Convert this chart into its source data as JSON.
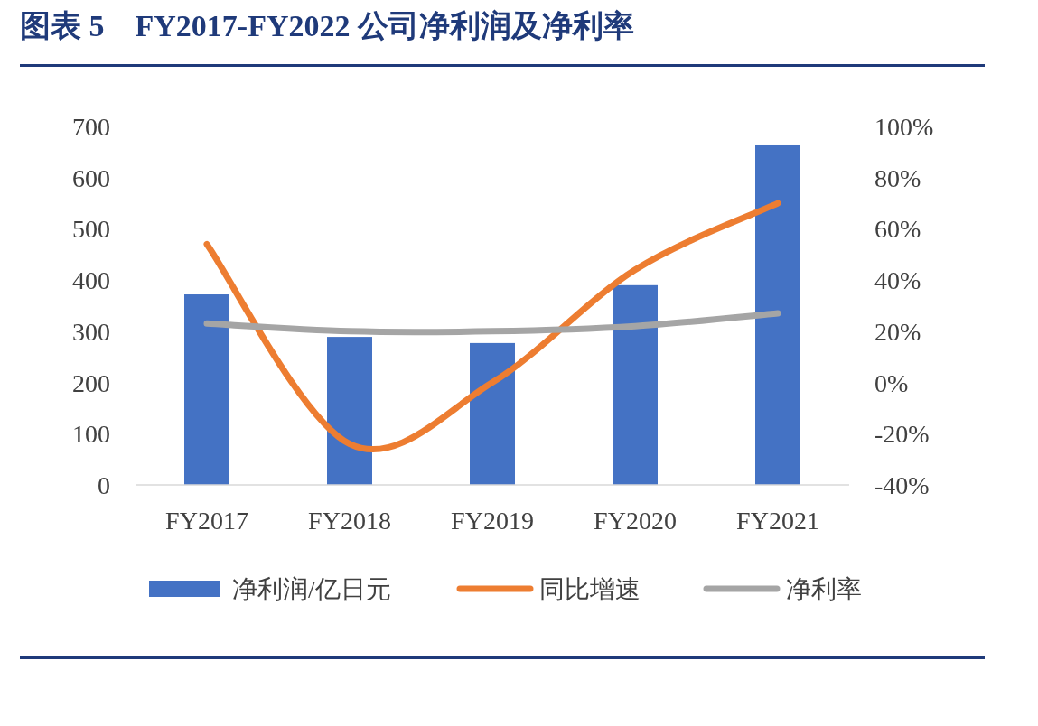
{
  "chart_data": {
    "type": "bar",
    "title": "图表 5　FY2017-FY2022 公司净利润及净利率",
    "categories": [
      "FY2017",
      "FY2018",
      "FY2019",
      "FY2020",
      "FY2021"
    ],
    "series": [
      {
        "name": "净利润/亿日元",
        "color": "#4472c4",
        "values": [
          372,
          289,
          277,
          390,
          663
        ]
      },
      {
        "name": "同比增速",
        "type": "line",
        "axis": "y2",
        "color": "#ed7d31",
        "values": [
          54,
          -24,
          0,
          44,
          70
        ]
      },
      {
        "name": "净利率",
        "type": "line",
        "axis": "y2",
        "color": "#a5a5a5",
        "values": [
          23,
          20,
          20,
          22,
          27
        ]
      }
    ],
    "ylim": [
      0,
      700
    ],
    "yticks": [
      0,
      100,
      200,
      300,
      400,
      500,
      600,
      700
    ],
    "y2lim": [
      -40,
      100
    ],
    "y2ticks": [
      {
        "value": -40,
        "label": "-40%"
      },
      {
        "value": -20,
        "label": "-20%"
      },
      {
        "value": 0,
        "label": "0%"
      },
      {
        "value": 20,
        "label": "20%"
      },
      {
        "value": 40,
        "label": "40%"
      },
      {
        "value": 60,
        "label": "60%"
      },
      {
        "value": 80,
        "label": "80%"
      },
      {
        "value": 100,
        "label": "100%"
      }
    ],
    "legend": "bottom",
    "grid": false,
    "marker": "none"
  }
}
